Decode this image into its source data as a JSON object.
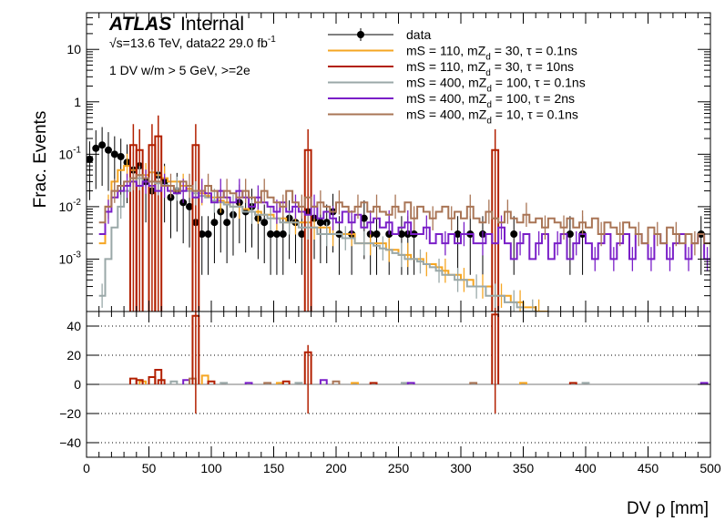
{
  "chart_data": {
    "type": "line",
    "x_label": "DV ρ [mm]",
    "y_label_top": "Frac. Events",
    "x_range": [
      0,
      500
    ],
    "y_range_top": [
      0.0001,
      50
    ],
    "y_scale_top": "log",
    "y_range_bottom": [
      -50,
      50
    ],
    "x_ticks": [
      "0",
      "50",
      "100",
      "150",
      "200",
      "250",
      "300",
      "350",
      "400",
      "450",
      "500"
    ],
    "y_ticks_top": [
      "10^{-3}",
      "10^{-2}",
      "10^{-1}",
      "1",
      "10"
    ],
    "y_ticks_top_values": [
      0.001,
      0.01,
      0.1,
      1,
      10
    ],
    "y_ticks_bottom": [
      "40",
      "20",
      "0",
      "−20",
      "−40"
    ],
    "y_ticks_bottom_values": [
      40,
      20,
      0,
      -20,
      -40
    ],
    "annotations": {
      "atlas": "ATLAS",
      "internal": "Internal",
      "energy_line": "√s=13.6 TeV, data22 29.0 fb",
      "lumi_exp": "-1",
      "selection": "1 DV w/m > 5 GeV, >=2e"
    },
    "legend_position": "top-right",
    "series": [
      {
        "name": "data",
        "kind": "points",
        "color": "#000000",
        "points": [
          [
            2.5,
            0.08
          ],
          [
            7.5,
            0.13
          ],
          [
            12.5,
            0.15
          ],
          [
            17.5,
            0.12
          ],
          [
            22.5,
            0.1
          ],
          [
            27.5,
            0.09
          ],
          [
            32.5,
            0.07
          ],
          [
            37.5,
            0.05
          ],
          [
            42.5,
            0.06
          ],
          [
            47.5,
            0.03
          ],
          [
            52.5,
            0.02
          ],
          [
            57.5,
            0.04
          ],
          [
            62.5,
            0.03
          ],
          [
            67.5,
            0.015
          ],
          [
            72.5,
            0.02
          ],
          [
            77.5,
            0.012
          ],
          [
            82.5,
            0.01
          ],
          [
            87.5,
            0.005
          ],
          [
            92.5,
            0.003
          ],
          [
            97.5,
            0.003
          ],
          [
            102.5,
            0.005
          ],
          [
            107.5,
            0.008
          ],
          [
            112.5,
            0.005
          ],
          [
            117.5,
            0.007
          ],
          [
            122.5,
            0.012
          ],
          [
            127.5,
            0.008
          ],
          [
            132.5,
            0.01
          ],
          [
            137.5,
            0.006
          ],
          [
            142.5,
            0.005
          ],
          [
            147.5,
            0.003
          ],
          [
            152.5,
            0.003
          ],
          [
            157.5,
            0.003
          ],
          [
            162.5,
            0.006
          ],
          [
            167.5,
            0.005
          ],
          [
            172.5,
            0.003
          ],
          [
            177.5,
            0.008
          ],
          [
            182.5,
            0.006
          ],
          [
            187.5,
            0.005
          ],
          [
            192.5,
            0.005
          ],
          [
            197.5,
            0.008
          ],
          [
            202.5,
            0.003
          ],
          [
            212.5,
            0.003
          ],
          [
            222.5,
            0.006
          ],
          [
            227.5,
            0.003
          ],
          [
            232.5,
            0.003
          ],
          [
            242.5,
            0.003
          ],
          [
            252.5,
            0.003
          ],
          [
            257.5,
            0.003
          ],
          [
            262.5,
            0.003
          ],
          [
            297.5,
            0.003
          ],
          [
            307.5,
            0.003
          ],
          [
            317.5,
            0.003
          ],
          [
            342.5,
            0.003
          ],
          [
            387.5,
            0.003
          ],
          [
            397.5,
            0.003
          ],
          [
            492.5,
            0.003
          ]
        ]
      },
      {
        "name": "mS = 110, mZ_d = 30, τ = 0.1ns",
        "kind": "step",
        "color": "#f5a623",
        "bin_width": 5,
        "x_start": 10,
        "values": [
          0.002,
          0.01,
          0.03,
          0.05,
          0.06,
          0.05,
          0.04,
          0.04,
          0.045,
          0.04,
          0.035,
          0.03,
          0.03,
          0.025,
          0.022,
          0.02,
          0.018,
          0.016,
          0.015,
          0.013,
          0.012,
          0.01,
          0.01,
          0.009,
          0.008,
          0.008,
          0.007,
          0.007,
          0.006,
          0.006,
          0.005,
          0.005,
          0.005,
          0.005,
          0.004,
          0.004,
          0.004,
          0.003,
          0.003,
          0.003,
          0.003,
          0.002,
          0.002,
          0.002,
          0.002,
          0.002,
          0.0015,
          0.0015,
          0.0012,
          0.0012,
          0.001,
          0.001,
          0.0008,
          0.0008,
          0.0007,
          0.0006,
          0.0005,
          0.0005,
          0.0004,
          0.0004,
          0.0003,
          0.0003,
          0.0003,
          0.0002,
          0.0002,
          0.0002,
          0.00015,
          0.00015,
          0.00012,
          0.00012,
          0.0001,
          0.0001
        ]
      },
      {
        "name": "mS = 110, mZ_d = 30, τ = 10ns",
        "kind": "spikes",
        "color": "#b22000",
        "points": [
          [
            37.5,
            0.15
          ],
          [
            42.5,
            0.12
          ],
          [
            52.5,
            0.15
          ],
          [
            57.5,
            0.22
          ],
          [
            87.5,
            0.15
          ],
          [
            177.5,
            0.12
          ],
          [
            327.5,
            0.12
          ]
        ]
      },
      {
        "name": "mS = 400, mZ_d = 100, τ = 0.1ns",
        "kind": "step",
        "color": "#9aa8a8",
        "bin_width": 5,
        "x_start": 10,
        "values": [
          0.0002,
          0.001,
          0.004,
          0.01,
          0.02,
          0.03,
          0.035,
          0.03,
          0.03,
          0.028,
          0.026,
          0.025,
          0.022,
          0.02,
          0.02,
          0.018,
          0.016,
          0.015,
          0.013,
          0.012,
          0.011,
          0.01,
          0.01,
          0.008,
          0.008,
          0.007,
          0.007,
          0.006,
          0.006,
          0.005,
          0.005,
          0.005,
          0.004,
          0.004,
          0.004,
          0.003,
          0.003,
          0.003,
          0.003,
          0.0025,
          0.0025,
          0.002,
          0.002,
          0.002,
          0.0018,
          0.0016,
          0.0015,
          0.0013,
          0.0012,
          0.001,
          0.001,
          0.0009,
          0.0008,
          0.0007,
          0.0006,
          0.0005,
          0.0005,
          0.0004,
          0.0004,
          0.0003,
          0.0003,
          0.0003,
          0.0002,
          0.0002,
          0.0002,
          0.00015,
          0.00015,
          0.00012,
          0.0001,
          0.0001
        ]
      },
      {
        "name": "mS = 400, mZ_d = 100, τ = 2ns",
        "kind": "step",
        "color": "#7a1fc8",
        "bin_width": 5,
        "x_start": 10,
        "values": [
          0.003,
          0.008,
          0.015,
          0.02,
          0.025,
          0.03,
          0.025,
          0.03,
          0.025,
          0.02,
          0.025,
          0.02,
          0.018,
          0.02,
          0.025,
          0.015,
          0.02,
          0.018,
          0.012,
          0.02,
          0.015,
          0.012,
          0.02,
          0.015,
          0.01,
          0.015,
          0.012,
          0.01,
          0.008,
          0.012,
          0.008,
          0.01,
          0.008,
          0.007,
          0.01,
          0.006,
          0.008,
          0.006,
          0.005,
          0.008,
          0.005,
          0.007,
          0.004,
          0.005,
          0.006,
          0.004,
          0.005,
          0.003,
          0.004,
          0.005,
          0.003,
          0.003,
          0.004,
          0.002,
          0.003,
          0.002,
          0.003,
          0.002,
          0.003,
          0.003,
          0.002,
          0.002,
          0.003,
          0.002,
          0.004,
          0.002,
          0.001,
          0.002,
          0.003,
          0.001,
          0.002,
          0.003,
          0.001,
          0.002,
          0.003,
          0.001,
          0.002,
          0.003,
          0.002,
          0.001,
          0.002,
          0.003,
          0.001,
          0.002,
          0.003,
          0.001,
          0.003,
          0.002,
          0.001,
          0.003,
          0.002,
          0.001,
          0.002,
          0.003,
          0.001,
          0.002,
          0.003,
          0.001
        ]
      },
      {
        "name": "mS = 400, mZ_d = 10, τ = 0.1ns",
        "kind": "step",
        "color": "#a97556",
        "bin_width": 5,
        "x_start": 10,
        "values": [
          0.005,
          0.01,
          0.02,
          0.025,
          0.03,
          0.035,
          0.04,
          0.035,
          0.03,
          0.03,
          0.025,
          0.025,
          0.02,
          0.03,
          0.025,
          0.02,
          0.02,
          0.025,
          0.02,
          0.015,
          0.02,
          0.018,
          0.015,
          0.02,
          0.015,
          0.012,
          0.02,
          0.015,
          0.012,
          0.01,
          0.02,
          0.012,
          0.01,
          0.015,
          0.01,
          0.012,
          0.01,
          0.008,
          0.012,
          0.01,
          0.008,
          0.01,
          0.012,
          0.008,
          0.01,
          0.008,
          0.007,
          0.01,
          0.008,
          0.012,
          0.006,
          0.01,
          0.008,
          0.006,
          0.008,
          0.01,
          0.006,
          0.008,
          0.006,
          0.01,
          0.006,
          0.005,
          0.008,
          0.006,
          0.005,
          0.008,
          0.006,
          0.005,
          0.007,
          0.005,
          0.006,
          0.004,
          0.006,
          0.005,
          0.004,
          0.006,
          0.004,
          0.005,
          0.004,
          0.006,
          0.003,
          0.005,
          0.004,
          0.003,
          0.005,
          0.004,
          0.003,
          0.002,
          0.004,
          0.003,
          0.002,
          0.004,
          0.003,
          0.002,
          0.003,
          0.002,
          0.003,
          0.002
        ]
      }
    ],
    "ratio": {
      "spikes": [
        [
          37.5,
          4
        ],
        [
          42.5,
          3
        ],
        [
          52.5,
          5
        ],
        [
          57.5,
          10
        ],
        [
          87.5,
          47
        ],
        [
          177.5,
          22
        ],
        [
          327.5,
          48
        ]
      ],
      "small": [
        [
          45,
          2
        ],
        [
          60,
          3
        ],
        [
          70,
          2
        ],
        [
          80,
          3
        ],
        [
          85,
          4
        ],
        [
          95,
          6
        ],
        [
          100,
          2
        ],
        [
          110,
          1
        ],
        [
          130,
          1
        ],
        [
          145,
          1
        ],
        [
          155,
          1
        ],
        [
          160,
          2
        ],
        [
          170,
          1
        ],
        [
          190,
          3
        ],
        [
          200,
          2
        ],
        [
          215,
          1
        ],
        [
          230,
          1
        ],
        [
          255,
          1
        ],
        [
          260,
          1
        ],
        [
          310,
          1
        ],
        [
          350,
          1
        ],
        [
          390,
          1
        ],
        [
          400,
          1
        ],
        [
          495,
          1
        ]
      ]
    }
  }
}
